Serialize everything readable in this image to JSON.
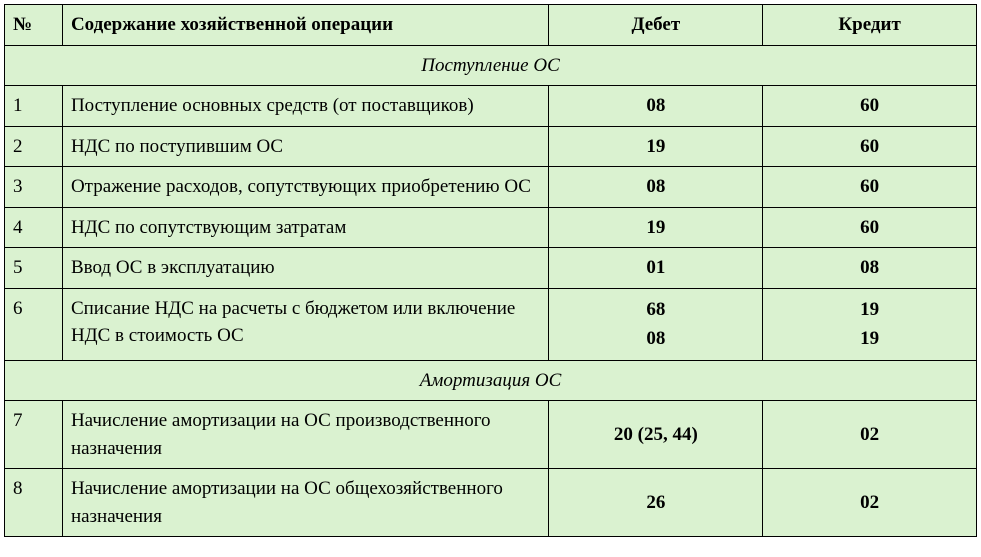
{
  "table": {
    "background_color": "#daf2d0",
    "border_color": "#000000",
    "font_family": "Times New Roman",
    "headers": {
      "num": "№",
      "content": "Содержание хозяйственной операции",
      "debit": "Дебет",
      "credit": "Кредит"
    },
    "column_widths": {
      "num": 58,
      "content": 487,
      "debit": 214,
      "credit": 214
    },
    "sections": [
      {
        "title": "Поступление ОС",
        "rows": [
          {
            "num": "1",
            "content": "Поступление основных средств (от поставщиков)",
            "debit": "08",
            "credit": "60"
          },
          {
            "num": "2",
            "content": "НДС по поступившим ОС",
            "debit": "19",
            "credit": "60"
          },
          {
            "num": "3",
            "content": "Отражение расходов, сопутствующих приобретению ОС",
            "debit": "08",
            "credit": "60"
          },
          {
            "num": "4",
            "content": "НДС по сопутствующим затратам",
            "debit": "19",
            "credit": "60"
          },
          {
            "num": "5",
            "content": "Ввод ОС в эксплуатацию",
            "debit": "01",
            "credit": "08"
          },
          {
            "num": "6",
            "content": "Списание НДС на расчеты с бюджетом или включение НДС в стоимость ОС",
            "debit": "68\n08",
            "credit": "19\n19"
          }
        ]
      },
      {
        "title": "Амортизация ОС",
        "rows": [
          {
            "num": "7",
            "content": "Начисление амортизации на ОС производственного назначения",
            "debit": "20 (25, 44)",
            "credit": "02"
          },
          {
            "num": "8",
            "content": "Начисление амортизации на ОС общехозяйственного назначения",
            "debit": "26",
            "credit": "02"
          }
        ]
      }
    ]
  }
}
